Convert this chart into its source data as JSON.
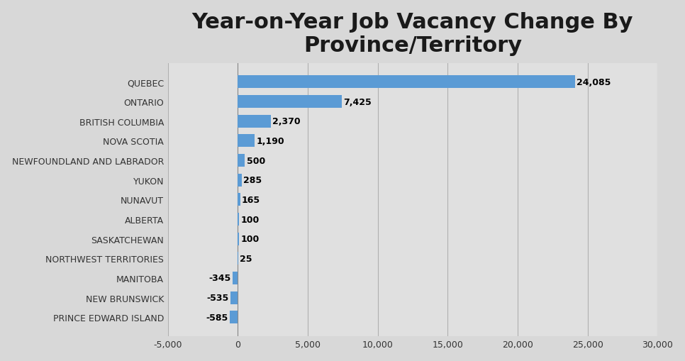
{
  "title": "Year-on-Year Job Vacancy Change By\nProvince/Territory",
  "categories": [
    "PRINCE EDWARD ISLAND",
    "NEW BRUNSWICK",
    "MANITOBA",
    "NORTHWEST TERRITORIES",
    "SASKATCHEWAN",
    "ALBERTA",
    "NUNAVUT",
    "YUKON",
    "NEWFOUNDLAND AND LABRADOR",
    "NOVA SCOTIA",
    "BRITISH COLUMBIA",
    "ONTARIO",
    "QUEBEC"
  ],
  "values": [
    -585,
    -535,
    -345,
    25,
    100,
    100,
    165,
    285,
    500,
    1190,
    2370,
    7425,
    24085
  ],
  "bar_color": "#5b9bd5",
  "title_fontsize": 22,
  "label_fontsize": 9,
  "tick_fontsize": 9,
  "xlim": [
    -5000,
    30000
  ],
  "xticks": [
    -5000,
    0,
    5000,
    10000,
    15000,
    20000,
    25000,
    30000
  ],
  "background_color": "#e8e8e8",
  "plot_bg_color": "#e0e0e0",
  "value_label_fontsize": 9,
  "grid_color": "#c8c8c8"
}
